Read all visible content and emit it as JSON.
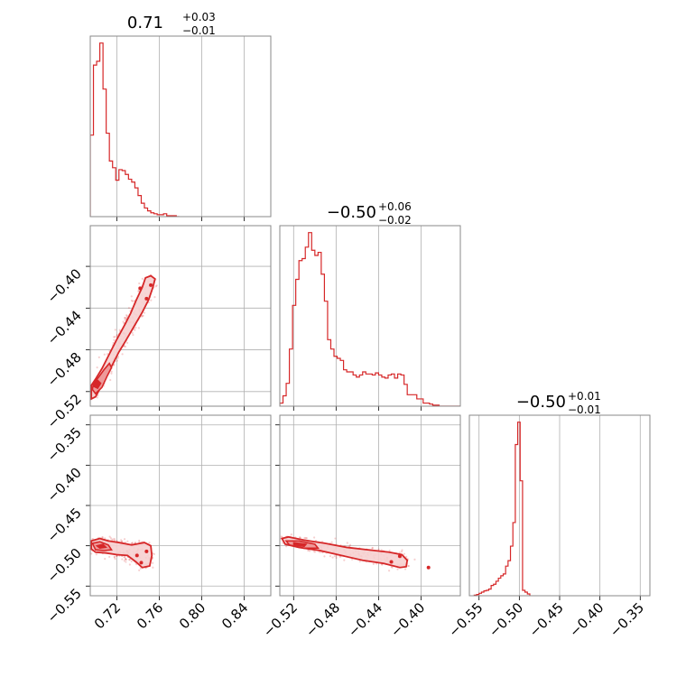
{
  "figure": {
    "titles": [
      {
        "value": "0.71",
        "plus": "+0.03",
        "minus": "−0.01"
      },
      {
        "value": "−0.50",
        "plus": "+0.06",
        "minus": "−0.02"
      },
      {
        "value": "−0.50",
        "plus": "+0.01",
        "minus": "−0.01"
      }
    ],
    "series_color": "#d62728",
    "contour_fill": "#f6d0d0"
  },
  "chart_data": [
    {
      "type": "histogram",
      "panel": "p1-marginal",
      "xlim": [
        0.695,
        0.865
      ],
      "xticks": [
        0.72,
        0.76,
        0.8,
        0.84
      ],
      "bin_edges": [
        0.695,
        0.698,
        0.701,
        0.704,
        0.707,
        0.71,
        0.713,
        0.716,
        0.719,
        0.722,
        0.725,
        0.728,
        0.731,
        0.734,
        0.737,
        0.74,
        0.743,
        0.746,
        0.749,
        0.752,
        0.755,
        0.758,
        0.761,
        0.764,
        0.767,
        0.77,
        0.773,
        0.776,
        0.779
      ],
      "values": [
        85,
        158,
        162,
        181,
        133,
        87,
        58,
        51,
        38,
        49,
        48,
        44,
        39,
        36,
        30,
        22,
        14,
        9,
        6,
        4,
        3,
        2,
        2,
        3,
        1,
        1,
        1,
        0
      ]
    },
    {
      "type": "histogram",
      "panel": "p2-marginal",
      "xlim": [
        -0.533,
        -0.363
      ],
      "xticks": [
        -0.52,
        -0.48,
        -0.44,
        -0.4
      ],
      "bin_edges": [
        -0.533,
        -0.53,
        -0.527,
        -0.524,
        -0.521,
        -0.518,
        -0.515,
        -0.512,
        -0.509,
        -0.506,
        -0.503,
        -0.5,
        -0.497,
        -0.494,
        -0.491,
        -0.488,
        -0.485,
        -0.482,
        -0.479,
        -0.476,
        -0.473,
        -0.47,
        -0.467,
        -0.464,
        -0.461,
        -0.458,
        -0.455,
        -0.452,
        -0.449,
        -0.446,
        -0.443,
        -0.44,
        -0.437,
        -0.434,
        -0.431,
        -0.428,
        -0.425,
        -0.422,
        -0.419,
        -0.416,
        -0.413,
        -0.41,
        -0.407,
        -0.404,
        -0.401,
        -0.398,
        -0.395,
        -0.392,
        -0.389,
        -0.386,
        -0.383,
        -0.38,
        -0.377,
        -0.374,
        -0.371,
        -0.368,
        -0.365,
        -0.363
      ],
      "values": [
        3,
        10,
        22,
        55,
        97,
        122,
        140,
        142,
        153,
        167,
        150,
        145,
        148,
        127,
        101,
        64,
        55,
        48,
        46,
        44,
        35,
        33,
        33,
        30,
        28,
        30,
        33,
        31,
        31,
        30,
        32,
        30,
        28,
        27,
        30,
        31,
        27,
        31,
        30,
        21,
        11,
        11,
        11,
        7,
        7,
        3,
        3,
        2,
        1,
        1,
        0,
        0,
        0,
        0,
        0,
        0,
        0
      ]
    },
    {
      "type": "histogram",
      "panel": "p3-marginal",
      "xlim": [
        -0.562,
        -0.338
      ],
      "xticks": [
        -0.55,
        -0.5,
        -0.45,
        -0.4,
        -0.35
      ],
      "bin_edges": [
        -0.556,
        -0.553,
        -0.55,
        -0.547,
        -0.544,
        -0.541,
        -0.538,
        -0.535,
        -0.532,
        -0.529,
        -0.526,
        -0.523,
        -0.52,
        -0.517,
        -0.514,
        -0.511,
        -0.508,
        -0.505,
        -0.502,
        -0.499,
        -0.496,
        -0.493,
        -0.49,
        -0.487
      ],
      "values": [
        1,
        2,
        4,
        6,
        8,
        9,
        11,
        17,
        19,
        24,
        29,
        33,
        36,
        49,
        58,
        82,
        121,
        250,
        287,
        190,
        9,
        6,
        3,
        0
      ]
    },
    {
      "type": "scatter",
      "panel": "p1-vs-p2",
      "xlim": [
        0.695,
        0.865
      ],
      "ylim": [
        -0.534,
        -0.361
      ],
      "x_ticks": [
        0.72,
        0.76,
        0.8,
        0.84
      ],
      "y_ticks": [
        -0.4,
        -0.44,
        -0.48,
        -0.52
      ],
      "contours": {
        "outer": [
          [
            0.696,
            -0.527
          ],
          [
            0.7,
            -0.525
          ],
          [
            0.708,
            -0.51
          ],
          [
            0.716,
            -0.494
          ],
          [
            0.722,
            -0.482
          ],
          [
            0.728,
            -0.472
          ],
          [
            0.736,
            -0.458
          ],
          [
            0.744,
            -0.444
          ],
          [
            0.75,
            -0.432
          ],
          [
            0.754,
            -0.42
          ],
          [
            0.756,
            -0.412
          ],
          [
            0.752,
            -0.409
          ],
          [
            0.747,
            -0.411
          ],
          [
            0.744,
            -0.42
          ],
          [
            0.738,
            -0.433
          ],
          [
            0.733,
            -0.445
          ],
          [
            0.728,
            -0.455
          ],
          [
            0.72,
            -0.47
          ],
          [
            0.712,
            -0.486
          ],
          [
            0.706,
            -0.498
          ],
          [
            0.7,
            -0.508
          ],
          [
            0.696,
            -0.514
          ]
        ],
        "inner": [
          [
            0.697,
            -0.518
          ],
          [
            0.7,
            -0.522
          ],
          [
            0.706,
            -0.516
          ],
          [
            0.711,
            -0.505
          ],
          [
            0.715,
            -0.497
          ],
          [
            0.713,
            -0.493
          ],
          [
            0.708,
            -0.499
          ],
          [
            0.703,
            -0.506
          ],
          [
            0.698,
            -0.512
          ]
        ],
        "core": [
          [
            0.698,
            -0.515
          ],
          [
            0.702,
            -0.517
          ],
          [
            0.705,
            -0.512
          ],
          [
            0.702,
            -0.509
          ],
          [
            0.699,
            -0.511
          ]
        ],
        "dots": [
          [
            0.748,
            -0.431
          ],
          [
            0.742,
            -0.421
          ],
          [
            0.752,
            -0.418
          ]
        ]
      }
    },
    {
      "type": "scatter",
      "panel": "p1-vs-p3",
      "xlim": [
        0.695,
        0.865
      ],
      "ylim": [
        -0.562,
        -0.338
      ],
      "x_ticks": [
        0.72,
        0.76,
        0.8,
        0.84
      ],
      "y_ticks": [
        -0.35,
        -0.4,
        -0.45,
        -0.5,
        -0.55
      ],
      "contours": {
        "outer": [
          [
            0.696,
            -0.494
          ],
          [
            0.704,
            -0.491
          ],
          [
            0.712,
            -0.494
          ],
          [
            0.722,
            -0.496
          ],
          [
            0.734,
            -0.499
          ],
          [
            0.746,
            -0.496
          ],
          [
            0.752,
            -0.5
          ],
          [
            0.753,
            -0.512
          ],
          [
            0.751,
            -0.525
          ],
          [
            0.744,
            -0.527
          ],
          [
            0.738,
            -0.52
          ],
          [
            0.73,
            -0.512
          ],
          [
            0.72,
            -0.511
          ],
          [
            0.71,
            -0.509
          ],
          [
            0.7,
            -0.508
          ],
          [
            0.696,
            -0.504
          ]
        ],
        "inner": [
          [
            0.697,
            -0.497
          ],
          [
            0.704,
            -0.495
          ],
          [
            0.712,
            -0.499
          ],
          [
            0.715,
            -0.505
          ],
          [
            0.708,
            -0.506
          ],
          [
            0.7,
            -0.505
          ]
        ],
        "core": [
          [
            0.701,
            -0.5
          ],
          [
            0.707,
            -0.498
          ],
          [
            0.71,
            -0.502
          ],
          [
            0.704,
            -0.503
          ]
        ],
        "dots": [
          [
            0.743,
            -0.521
          ],
          [
            0.739,
            -0.512
          ],
          [
            0.748,
            -0.507
          ]
        ]
      }
    },
    {
      "type": "scatter",
      "panel": "p2-vs-p3",
      "xlim": [
        -0.533,
        -0.363
      ],
      "ylim": [
        -0.562,
        -0.338
      ],
      "x_ticks": [
        -0.52,
        -0.48,
        -0.44,
        -0.4
      ],
      "y_ticks": [
        -0.35,
        -0.4,
        -0.45,
        -0.5,
        -0.55
      ],
      "contours": {
        "outer": [
          [
            -0.531,
            -0.491
          ],
          [
            -0.525,
            -0.489
          ],
          [
            -0.51,
            -0.493
          ],
          [
            -0.49,
            -0.497
          ],
          [
            -0.47,
            -0.502
          ],
          [
            -0.45,
            -0.505
          ],
          [
            -0.43,
            -0.508
          ],
          [
            -0.418,
            -0.511
          ],
          [
            -0.413,
            -0.518
          ],
          [
            -0.414,
            -0.526
          ],
          [
            -0.42,
            -0.527
          ],
          [
            -0.435,
            -0.522
          ],
          [
            -0.455,
            -0.518
          ],
          [
            -0.475,
            -0.512
          ],
          [
            -0.495,
            -0.506
          ],
          [
            -0.515,
            -0.502
          ],
          [
            -0.528,
            -0.498
          ]
        ],
        "inner": [
          [
            -0.527,
            -0.494
          ],
          [
            -0.515,
            -0.494
          ],
          [
            -0.5,
            -0.498
          ],
          [
            -0.497,
            -0.503
          ],
          [
            -0.51,
            -0.503
          ],
          [
            -0.524,
            -0.499
          ]
        ],
        "core": [
          [
            -0.52,
            -0.496
          ],
          [
            -0.508,
            -0.498
          ],
          [
            -0.51,
            -0.501
          ],
          [
            -0.52,
            -0.499
          ]
        ],
        "dots": [
          [
            -0.393,
            -0.527
          ],
          [
            -0.42,
            -0.513
          ],
          [
            -0.428,
            -0.52
          ]
        ]
      }
    }
  ]
}
